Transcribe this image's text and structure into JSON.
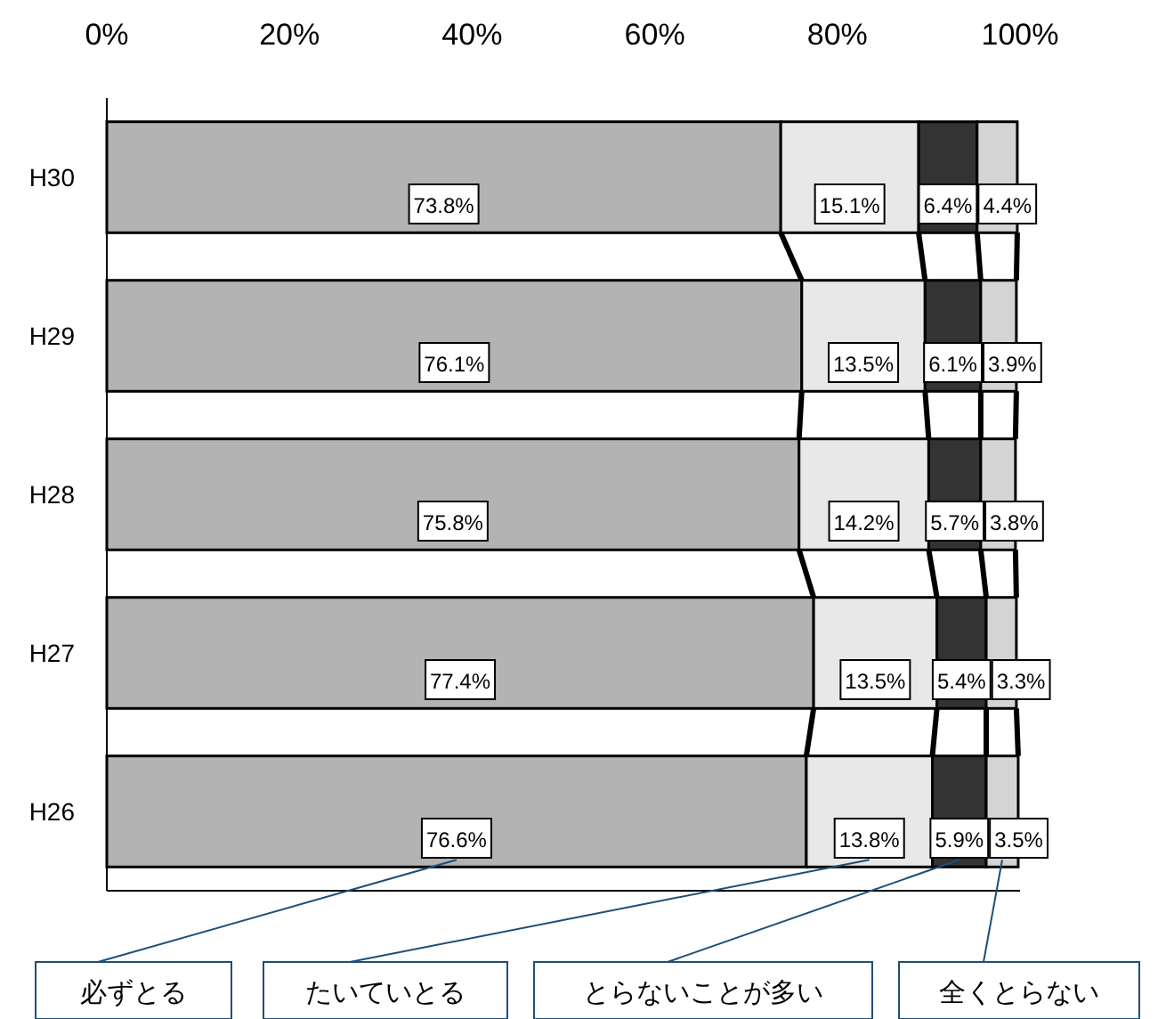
{
  "chart_data": {
    "type": "bar",
    "orientation": "horizontal",
    "stacked": true,
    "categories": [
      "H30",
      "H29",
      "H28",
      "H27",
      "H26"
    ],
    "xlim": [
      0,
      100
    ],
    "xticks": [
      {
        "value": 0,
        "label": "0%"
      },
      {
        "value": 20,
        "label": "20%"
      },
      {
        "value": 40,
        "label": "40%"
      },
      {
        "value": 60,
        "label": "60%"
      },
      {
        "value": 80,
        "label": "80%"
      },
      {
        "value": 100,
        "label": "100%"
      }
    ],
    "grid": false,
    "legend": "bottom",
    "series": [
      {
        "name": "必ずとる",
        "color": "#b3b3b3",
        "values": [
          73.8,
          76.1,
          75.8,
          77.4,
          76.6
        ],
        "value_labels": [
          "73.8%",
          "76.1%",
          "75.8%",
          "77.4%",
          "76.6%"
        ]
      },
      {
        "name": "たいていとる",
        "color": "#e8e8e8",
        "values": [
          15.1,
          13.5,
          14.2,
          13.5,
          13.8
        ],
        "value_labels": [
          "15.1%",
          "13.5%",
          "14.2%",
          "13.5%",
          "13.8%"
        ]
      },
      {
        "name": "とらないことが多い",
        "color": "#333333",
        "values": [
          6.4,
          6.1,
          5.7,
          5.4,
          5.9
        ],
        "value_labels": [
          "6.4%",
          "6.1%",
          "5.7%",
          "5.4%",
          "5.9%"
        ]
      },
      {
        "name": "全くとらない",
        "color": "#d4d4d4",
        "values": [
          4.4,
          3.9,
          3.8,
          3.3,
          3.5
        ],
        "value_labels": [
          "4.4%",
          "3.9%",
          "3.8%",
          "3.3%",
          "3.5%"
        ]
      }
    ]
  }
}
